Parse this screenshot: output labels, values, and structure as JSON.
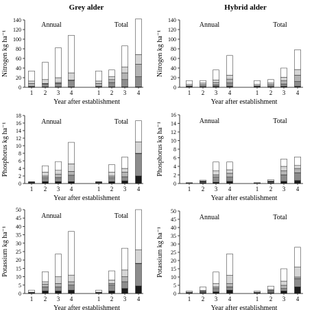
{
  "column_titles": [
    "Grey alder",
    "Hybrid alder"
  ],
  "chart_data": [
    {
      "type": "bar",
      "stacked": true,
      "column": "Grey alder",
      "ylabel": "Nitrogen kg ha⁻¹",
      "xlabel": "Year after establishment",
      "ylim": [
        0,
        140
      ],
      "yticks": [
        0,
        20,
        40,
        60,
        80,
        100,
        120,
        140
      ],
      "groups": [
        {
          "label": "Annual",
          "categories": [
            "1",
            "2",
            "3",
            "4"
          ],
          "stacks": [
            [
              1,
              1,
              1,
              1
            ],
            [
              2,
              7,
              8,
              16
            ],
            [
              8,
              8,
              10,
              15
            ],
            [
              13,
              16,
              20,
              30
            ],
            [
              34,
              52,
              82,
              108
            ]
          ]
        },
        {
          "label": "Total",
          "categories": [
            "1",
            "2",
            "3",
            "4"
          ],
          "stacks": [
            [
              1,
              1,
              1,
              1
            ],
            [
              2,
              10,
              16,
              22
            ],
            [
              8,
              16,
              30,
              48
            ],
            [
              13,
              22,
              42,
              68
            ],
            [
              34,
              36,
              86,
              142
            ]
          ]
        }
      ]
    },
    {
      "type": "bar",
      "stacked": true,
      "column": "Hybrid alder",
      "ylabel": "Nitrogen kg ha⁻¹",
      "xlabel": "Year after establishment",
      "ylim": [
        0,
        140
      ],
      "yticks": [
        0,
        20,
        40,
        60,
        80,
        100,
        120,
        140
      ],
      "groups": [
        {
          "label": "Annual",
          "categories": [
            "1",
            "2",
            "3",
            "4"
          ],
          "stacks": [
            [
              1,
              1,
              2,
              2
            ],
            [
              2,
              3,
              5,
              9
            ],
            [
              3,
              6,
              10,
              17
            ],
            [
              6,
              9,
              15,
              25
            ],
            [
              14,
              14,
              36,
              66
            ]
          ]
        },
        {
          "label": "Total",
          "categories": [
            "1",
            "2",
            "3",
            "4"
          ],
          "stacks": [
            [
              1,
              1,
              2,
              2
            ],
            [
              2,
              3,
              7,
              12
            ],
            [
              3,
              6,
              14,
              25
            ],
            [
              6,
              9,
              21,
              37
            ],
            [
              14,
              16,
              40,
              78
            ]
          ]
        }
      ]
    },
    {
      "type": "bar",
      "stacked": true,
      "column": "Grey alder",
      "ylabel": "Phosphorus kg ha⁻¹",
      "xlabel": "Year after establishment",
      "ylim": [
        0,
        18
      ],
      "yticks": [
        0,
        2,
        4,
        6,
        8,
        10,
        12,
        14,
        16,
        18
      ],
      "groups": [
        {
          "label": "Annual",
          "categories": [
            "1",
            "2",
            "3",
            "4"
          ],
          "stacks": [
            [
              0.1,
              0.5,
              0.5,
              0.5
            ],
            [
              0.2,
              1.5,
              1.6,
              2.2
            ],
            [
              0.3,
              2,
              2.5,
              3.2
            ],
            [
              0.4,
              3,
              3.5,
              5.2
            ],
            [
              0.5,
              4.7,
              5.8,
              10.9
            ]
          ]
        },
        {
          "label": "Total",
          "categories": [
            "1",
            "2",
            "3",
            "4"
          ],
          "stacks": [
            [
              0.1,
              0.5,
              0.7,
              2
            ],
            [
              0.2,
              1.5,
              1.8,
              8
            ],
            [
              0.3,
              2,
              3,
              8
            ],
            [
              0.4,
              3,
              4,
              11
            ],
            [
              0.5,
              5,
              7,
              16.6
            ]
          ]
        }
      ]
    },
    {
      "type": "bar",
      "stacked": true,
      "column": "Hybrid alder",
      "ylabel": "Phosphorus kg ha⁻¹",
      "xlabel": "Year after establishment",
      "ylim": [
        0,
        16
      ],
      "yticks": [
        0,
        2,
        4,
        6,
        8,
        10,
        12,
        14,
        16
      ],
      "groups": [
        {
          "label": "Annual",
          "categories": [
            "1",
            "2",
            "3",
            "4"
          ],
          "stacks": [
            [
              0.1,
              0.2,
              0.3,
              0.5
            ],
            [
              0.1,
              0.4,
              1.5,
              1.5
            ],
            [
              0.2,
              0.5,
              2,
              2.4
            ],
            [
              0.2,
              0.6,
              3,
              3.2
            ],
            [
              0.2,
              0.8,
              5,
              5
            ]
          ]
        },
        {
          "label": "Total",
          "categories": [
            "1",
            "2",
            "3",
            "4"
          ],
          "stacks": [
            [
              0.1,
              0.2,
              0.5,
              0.7
            ],
            [
              0.1,
              0.4,
              2,
              2.5
            ],
            [
              0.2,
              0.5,
              3,
              3.5
            ],
            [
              0.2,
              0.6,
              4,
              4.2
            ],
            [
              0.2,
              0.9,
              5.7,
              6.2
            ]
          ]
        }
      ]
    },
    {
      "type": "bar",
      "stacked": true,
      "column": "Grey alder",
      "ylabel": "Potassium kg ha⁻¹",
      "xlabel": "Year after establishment",
      "ylim": [
        0,
        50
      ],
      "yticks": [
        0,
        5,
        10,
        15,
        20,
        25,
        30,
        35,
        40,
        45,
        50
      ],
      "groups": [
        {
          "label": "Annual",
          "categories": [
            "1",
            "2",
            "3",
            "4"
          ],
          "stacks": [
            [
              0.2,
              1.5,
              1.5,
              2
            ],
            [
              0.4,
              4,
              4,
              5
            ],
            [
              0.6,
              5.5,
              6,
              7
            ],
            [
              0.8,
              7,
              10,
              11
            ],
            [
              2,
              13,
              23.5,
              37
            ]
          ]
        },
        {
          "label": "Total",
          "categories": [
            "1",
            "2",
            "3",
            "4"
          ],
          "stacks": [
            [
              0.2,
              1.5,
              3,
              4.5
            ],
            [
              0.4,
              5,
              7,
              18
            ],
            [
              0.6,
              6,
              10,
              18
            ],
            [
              0.8,
              8,
              14,
              26
            ],
            [
              2,
              13.5,
              27,
              50
            ]
          ]
        }
      ]
    },
    {
      "type": "bar",
      "stacked": true,
      "column": "Hybrid alder",
      "ylabel": "Potassium kg ha⁻¹",
      "xlabel": "Year after establishment",
      "ylim": [
        0,
        50
      ],
      "yticks": [
        0,
        5,
        10,
        15,
        20,
        25,
        30,
        35,
        40,
        45,
        50
      ],
      "groups": [
        {
          "label": "Annual",
          "categories": [
            "1",
            "2",
            "3",
            "4"
          ],
          "stacks": [
            [
              0.2,
              0.5,
              1,
              2
            ],
            [
              0.4,
              1,
              3,
              4
            ],
            [
              0.6,
              1.5,
              4,
              6
            ],
            [
              0.8,
              2,
              6,
              11
            ],
            [
              1.5,
              4,
              13,
              24
            ]
          ]
        },
        {
          "label": "Total",
          "categories": [
            "1",
            "2",
            "3",
            "4"
          ],
          "stacks": [
            [
              0.2,
              0.5,
              1.5,
              4
            ],
            [
              0.4,
              1.5,
              3,
              9
            ],
            [
              0.6,
              2,
              5,
              10
            ],
            [
              0.8,
              2.5,
              7.5,
              16
            ],
            [
              1.5,
              4.5,
              15,
              28
            ]
          ]
        }
      ]
    }
  ]
}
